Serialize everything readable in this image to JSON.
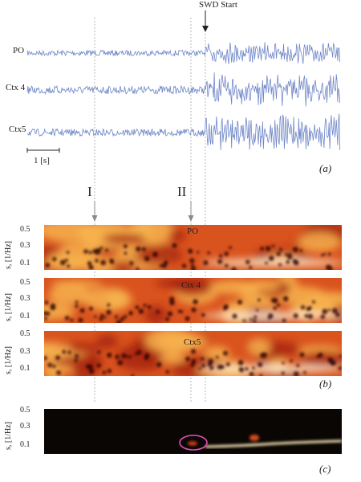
{
  "annotation": {
    "swd_label": "SWD Start"
  },
  "traces": [
    {
      "label": "PO"
    },
    {
      "label": "Ctx 4"
    },
    {
      "label": "Ctx5"
    }
  ],
  "scale_bar": {
    "label": "1 [s]"
  },
  "markers": [
    {
      "label": "I"
    },
    {
      "label": "II"
    }
  ],
  "panel_labels": {
    "a": "(a)",
    "b": "(b)",
    "c": "(c)"
  },
  "spectrograms": [
    {
      "label": "PO",
      "ylabel": "s, [1/Hz]"
    },
    {
      "label": "Ctx 4",
      "ylabel": "s, [1/Hz]"
    },
    {
      "label": "Ctx5",
      "ylabel": "s, [1/Hz]"
    }
  ],
  "bottom_panel": {
    "ylabel": "s, [1/Hz]"
  },
  "tick_labels": [
    "0.5",
    "0.3",
    "0.1"
  ],
  "colors": {
    "trace": "#6f86c8",
    "heat_bg": "#d9531e",
    "heat_light": "#f7b24d",
    "dark_bg": "#0a0604",
    "highlight": "#e04fb4"
  }
}
